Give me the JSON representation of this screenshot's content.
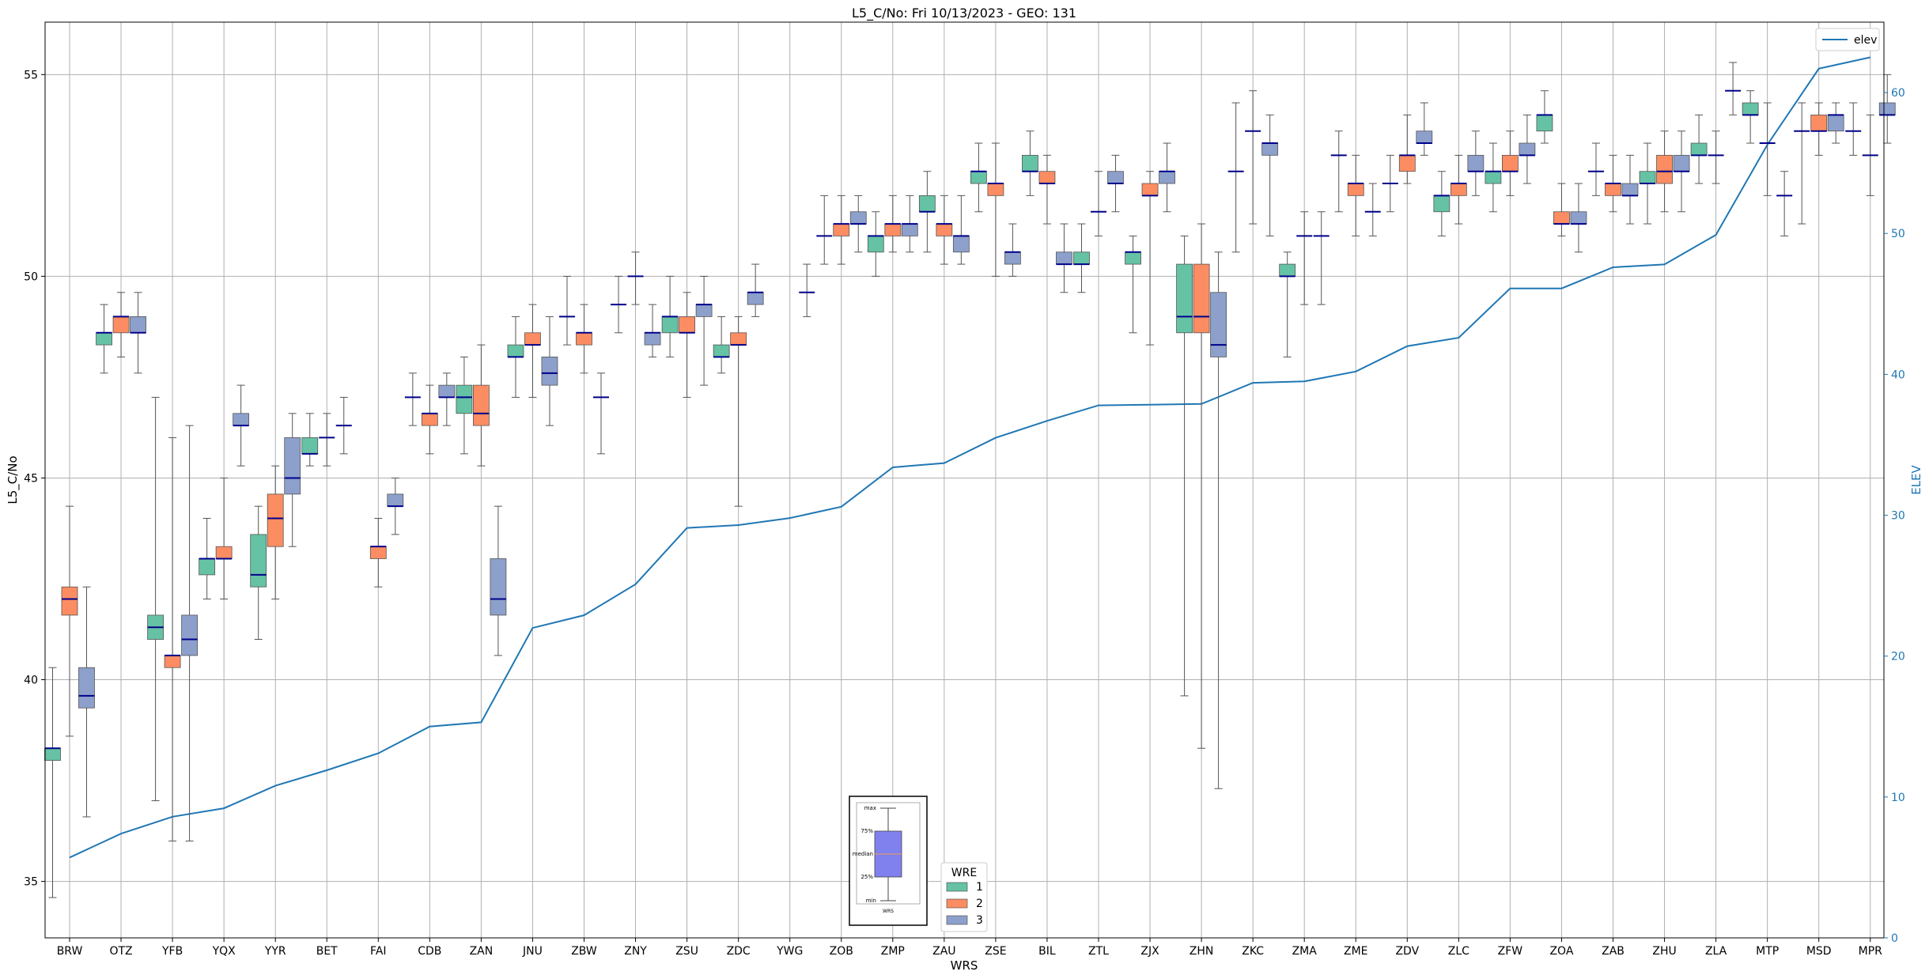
{
  "chart_data": {
    "type": "box",
    "title": "L5_C/No: Fri 10/13/2023 - GEO: 131",
    "xlabel": "WRS",
    "ylabel": "L5_C/No",
    "y2label": "ELEV",
    "ylim": [
      33.6,
      56.3
    ],
    "y2lim": [
      0,
      65
    ],
    "yticks": [
      35,
      40,
      45,
      50,
      55
    ],
    "y2ticks": [
      0,
      10,
      20,
      30,
      40,
      50,
      60
    ],
    "grid": true,
    "colors": {
      "1": "#66c2a5",
      "2": "#fc8d62",
      "3": "#8da0cb",
      "median": "#00008b",
      "elev": "#1f77b4",
      "whisker": "#555555",
      "axis2": "#1f77b4"
    },
    "legend_elev": {
      "label": "elev",
      "position": "top-right"
    },
    "legend_wre": {
      "title": "WRE",
      "entries": [
        "1",
        "2",
        "3"
      ],
      "position": "bottom-center"
    },
    "inset": {
      "labels": [
        "max",
        "75%",
        "median",
        "25%",
        "min"
      ],
      "xlabel": "WRS"
    },
    "categories": [
      "BRW",
      "OTZ",
      "YFB",
      "YQX",
      "YYR",
      "BET",
      "FAI",
      "CDB",
      "ZAN",
      "JNU",
      "ZBW",
      "ZNY",
      "ZSU",
      "ZDC",
      "YWG",
      "ZOB",
      "ZMP",
      "ZAU",
      "ZSE",
      "BIL",
      "ZTL",
      "ZJX",
      "ZHN",
      "ZKC",
      "ZMA",
      "ZME",
      "ZDV",
      "ZLC",
      "ZFW",
      "ZOA",
      "ZAB",
      "ZHU",
      "ZLA",
      "MTP",
      "MSD",
      "MPR"
    ],
    "elev": [
      5.7,
      7.4,
      8.6,
      9.2,
      10.8,
      11.9,
      13.1,
      15.0,
      15.3,
      22.0,
      22.9,
      25.1,
      29.1,
      29.3,
      29.8,
      30.6,
      33.4,
      33.7,
      35.5,
      36.7,
      37.8,
      37.85,
      37.9,
      39.4,
      39.5,
      40.2,
      42.0,
      42.6,
      46.1,
      46.1,
      47.6,
      47.8,
      49.9,
      56.3,
      61.7,
      62.5
    ],
    "boxes": [
      {
        "station": "BRW",
        "wre": 1,
        "min": 34.6,
        "q1": 38.0,
        "med": 38.3,
        "q3": 38.3,
        "max": 40.3
      },
      {
        "station": "BRW",
        "wre": 2,
        "min": 38.6,
        "q1": 41.6,
        "med": 42.0,
        "q3": 42.3,
        "max": 44.3
      },
      {
        "station": "BRW",
        "wre": 3,
        "min": 36.6,
        "q1": 39.3,
        "med": 39.6,
        "q3": 40.3,
        "max": 42.3
      },
      {
        "station": "OTZ",
        "wre": 1,
        "min": 47.6,
        "q1": 48.3,
        "med": 48.6,
        "q3": 48.6,
        "max": 49.3
      },
      {
        "station": "OTZ",
        "wre": 2,
        "min": 48.0,
        "q1": 48.6,
        "med": 49.0,
        "q3": 49.0,
        "max": 49.6
      },
      {
        "station": "OTZ",
        "wre": 3,
        "min": 47.6,
        "q1": 48.6,
        "med": 48.6,
        "q3": 49.0,
        "max": 49.6
      },
      {
        "station": "YFB",
        "wre": 1,
        "min": 37.0,
        "q1": 41.0,
        "med": 41.3,
        "q3": 41.6,
        "max": 47.0
      },
      {
        "station": "YFB",
        "wre": 2,
        "min": 36.0,
        "q1": 40.3,
        "med": 40.6,
        "q3": 40.6,
        "max": 46.0
      },
      {
        "station": "YFB",
        "wre": 3,
        "min": 36.0,
        "q1": 40.6,
        "med": 41.0,
        "q3": 41.6,
        "max": 46.3
      },
      {
        "station": "YQX",
        "wre": 1,
        "min": 42.0,
        "q1": 42.6,
        "med": 43.0,
        "q3": 43.0,
        "max": 44.0
      },
      {
        "station": "YQX",
        "wre": 2,
        "min": 42.0,
        "q1": 43.0,
        "med": 43.0,
        "q3": 43.3,
        "max": 45.0
      },
      {
        "station": "YQX",
        "wre": 3,
        "min": 45.3,
        "q1": 46.3,
        "med": 46.3,
        "q3": 46.6,
        "max": 47.3
      },
      {
        "station": "YYR",
        "wre": 1,
        "min": 41.0,
        "q1": 42.3,
        "med": 42.6,
        "q3": 43.6,
        "max": 44.3
      },
      {
        "station": "YYR",
        "wre": 2,
        "min": 42.0,
        "q1": 43.3,
        "med": 44.0,
        "q3": 44.6,
        "max": 45.3
      },
      {
        "station": "YYR",
        "wre": 3,
        "min": 43.3,
        "q1": 44.6,
        "med": 45.0,
        "q3": 46.0,
        "max": 46.6
      },
      {
        "station": "BET",
        "wre": 1,
        "min": 45.3,
        "q1": 45.6,
        "med": 45.6,
        "q3": 46.0,
        "max": 46.6
      },
      {
        "station": "BET",
        "wre": 2,
        "min": 45.3,
        "q1": 46.0,
        "med": 46.0,
        "q3": 46.0,
        "max": 46.6
      },
      {
        "station": "BET",
        "wre": 3,
        "min": 45.6,
        "q1": 46.3,
        "med": 46.3,
        "q3": 46.3,
        "max": 47.0
      },
      {
        "station": "FAI",
        "wre": 2,
        "min": 42.3,
        "q1": 43.0,
        "med": 43.3,
        "q3": 43.3,
        "max": 44.0
      },
      {
        "station": "FAI",
        "wre": 3,
        "min": 43.6,
        "q1": 44.3,
        "med": 44.3,
        "q3": 44.6,
        "max": 45.0
      },
      {
        "station": "CDB",
        "wre": 1,
        "min": 46.3,
        "q1": 47.0,
        "med": 47.0,
        "q3": 47.0,
        "max": 47.6
      },
      {
        "station": "CDB",
        "wre": 2,
        "min": 45.6,
        "q1": 46.3,
        "med": 46.6,
        "q3": 46.6,
        "max": 47.3
      },
      {
        "station": "CDB",
        "wre": 3,
        "min": 46.3,
        "q1": 47.0,
        "med": 47.0,
        "q3": 47.3,
        "max": 47.6
      },
      {
        "station": "ZAN",
        "wre": 1,
        "min": 45.6,
        "q1": 46.6,
        "med": 47.0,
        "q3": 47.3,
        "max": 48.0
      },
      {
        "station": "ZAN",
        "wre": 2,
        "min": 45.3,
        "q1": 46.3,
        "med": 46.6,
        "q3": 47.3,
        "max": 48.3
      },
      {
        "station": "ZAN",
        "wre": 3,
        "min": 40.6,
        "q1": 41.6,
        "med": 42.0,
        "q3": 43.0,
        "max": 44.3
      },
      {
        "station": "JNU",
        "wre": 1,
        "min": 47.0,
        "q1": 48.0,
        "med": 48.0,
        "q3": 48.3,
        "max": 49.0
      },
      {
        "station": "JNU",
        "wre": 2,
        "min": 47.0,
        "q1": 48.3,
        "med": 48.3,
        "q3": 48.6,
        "max": 49.3
      },
      {
        "station": "JNU",
        "wre": 3,
        "min": 46.3,
        "q1": 47.3,
        "med": 47.6,
        "q3": 48.0,
        "max": 49.0
      },
      {
        "station": "ZBW",
        "wre": 1,
        "min": 48.3,
        "q1": 49.0,
        "med": 49.0,
        "q3": 49.0,
        "max": 50.0
      },
      {
        "station": "ZBW",
        "wre": 2,
        "min": 47.6,
        "q1": 48.3,
        "med": 48.6,
        "q3": 48.6,
        "max": 49.3
      },
      {
        "station": "ZBW",
        "wre": 3,
        "min": 45.6,
        "q1": 47.0,
        "med": 47.0,
        "q3": 47.0,
        "max": 47.6
      },
      {
        "station": "ZNY",
        "wre": 1,
        "min": 48.6,
        "q1": 49.3,
        "med": 49.3,
        "q3": 49.3,
        "max": 50.0
      },
      {
        "station": "ZNY",
        "wre": 2,
        "min": 49.3,
        "q1": 50.0,
        "med": 50.0,
        "q3": 50.0,
        "max": 50.6
      },
      {
        "station": "ZNY",
        "wre": 3,
        "min": 48.0,
        "q1": 48.3,
        "med": 48.6,
        "q3": 48.6,
        "max": 49.3
      },
      {
        "station": "ZSU",
        "wre": 1,
        "min": 48.0,
        "q1": 48.6,
        "med": 49.0,
        "q3": 49.0,
        "max": 50.0
      },
      {
        "station": "ZSU",
        "wre": 2,
        "min": 47.0,
        "q1": 48.6,
        "med": 48.6,
        "q3": 49.0,
        "max": 49.6
      },
      {
        "station": "ZSU",
        "wre": 3,
        "min": 47.3,
        "q1": 49.0,
        "med": 49.3,
        "q3": 49.3,
        "max": 50.0
      },
      {
        "station": "ZDC",
        "wre": 1,
        "min": 47.6,
        "q1": 48.0,
        "med": 48.0,
        "q3": 48.3,
        "max": 49.0
      },
      {
        "station": "ZDC",
        "wre": 2,
        "min": 44.3,
        "q1": 48.3,
        "med": 48.3,
        "q3": 48.6,
        "max": 49.0
      },
      {
        "station": "ZDC",
        "wre": 3,
        "min": 49.0,
        "q1": 49.3,
        "med": 49.6,
        "q3": 49.6,
        "max": 50.3
      },
      {
        "station": "YWG",
        "wre": 3,
        "min": 49.0,
        "q1": 49.6,
        "med": 49.6,
        "q3": 49.6,
        "max": 50.3
      },
      {
        "station": "ZOB",
        "wre": 1,
        "min": 50.3,
        "q1": 51.0,
        "med": 51.0,
        "q3": 51.0,
        "max": 52.0
      },
      {
        "station": "ZOB",
        "wre": 2,
        "min": 50.3,
        "q1": 51.0,
        "med": 51.3,
        "q3": 51.3,
        "max": 52.0
      },
      {
        "station": "ZOB",
        "wre": 3,
        "min": 50.6,
        "q1": 51.3,
        "med": 51.3,
        "q3": 51.6,
        "max": 52.0
      },
      {
        "station": "ZMP",
        "wre": 1,
        "min": 50.0,
        "q1": 50.6,
        "med": 51.0,
        "q3": 51.0,
        "max": 51.6
      },
      {
        "station": "ZMP",
        "wre": 2,
        "min": 50.6,
        "q1": 51.0,
        "med": 51.3,
        "q3": 51.3,
        "max": 52.0
      },
      {
        "station": "ZMP",
        "wre": 3,
        "min": 50.6,
        "q1": 51.0,
        "med": 51.3,
        "q3": 51.3,
        "max": 52.0
      },
      {
        "station": "ZAU",
        "wre": 1,
        "min": 50.6,
        "q1": 51.6,
        "med": 51.6,
        "q3": 52.0,
        "max": 52.6
      },
      {
        "station": "ZAU",
        "wre": 2,
        "min": 50.3,
        "q1": 51.0,
        "med": 51.3,
        "q3": 51.3,
        "max": 52.0
      },
      {
        "station": "ZAU",
        "wre": 3,
        "min": 50.3,
        "q1": 50.6,
        "med": 51.0,
        "q3": 51.0,
        "max": 52.0
      },
      {
        "station": "ZSE",
        "wre": 1,
        "min": 51.6,
        "q1": 52.3,
        "med": 52.6,
        "q3": 52.6,
        "max": 53.3
      },
      {
        "station": "ZSE",
        "wre": 2,
        "min": 50.0,
        "q1": 52.0,
        "med": 52.3,
        "q3": 52.3,
        "max": 53.3
      },
      {
        "station": "ZSE",
        "wre": 3,
        "min": 50.0,
        "q1": 50.3,
        "med": 50.6,
        "q3": 50.6,
        "max": 51.3
      },
      {
        "station": "BIL",
        "wre": 1,
        "min": 52.0,
        "q1": 52.6,
        "med": 52.6,
        "q3": 53.0,
        "max": 53.6
      },
      {
        "station": "BIL",
        "wre": 2,
        "min": 51.3,
        "q1": 52.3,
        "med": 52.3,
        "q3": 52.6,
        "max": 53.0
      },
      {
        "station": "BIL",
        "wre": 3,
        "min": 49.6,
        "q1": 50.3,
        "med": 50.3,
        "q3": 50.6,
        "max": 51.3
      },
      {
        "station": "ZTL",
        "wre": 1,
        "min": 49.6,
        "q1": 50.3,
        "med": 50.3,
        "q3": 50.6,
        "max": 51.3
      },
      {
        "station": "ZTL",
        "wre": 2,
        "min": 51.0,
        "q1": 51.6,
        "med": 51.6,
        "q3": 51.6,
        "max": 52.6
      },
      {
        "station": "ZTL",
        "wre": 3,
        "min": 51.6,
        "q1": 52.3,
        "med": 52.3,
        "q3": 52.6,
        "max": 53.0
      },
      {
        "station": "ZJX",
        "wre": 1,
        "min": 48.6,
        "q1": 50.3,
        "med": 50.6,
        "q3": 50.6,
        "max": 51.0
      },
      {
        "station": "ZJX",
        "wre": 2,
        "min": 48.3,
        "q1": 52.0,
        "med": 52.0,
        "q3": 52.3,
        "max": 52.6
      },
      {
        "station": "ZJX",
        "wre": 3,
        "min": 51.6,
        "q1": 52.3,
        "med": 52.6,
        "q3": 52.6,
        "max": 53.3
      },
      {
        "station": "ZHN",
        "wre": 1,
        "min": 39.6,
        "q1": 48.6,
        "med": 49.0,
        "q3": 50.3,
        "max": 51.0
      },
      {
        "station": "ZHN",
        "wre": 2,
        "min": 38.3,
        "q1": 48.6,
        "med": 49.0,
        "q3": 50.3,
        "max": 51.3
      },
      {
        "station": "ZHN",
        "wre": 3,
        "min": 37.3,
        "q1": 48.0,
        "med": 48.3,
        "q3": 49.6,
        "max": 50.6
      },
      {
        "station": "ZKC",
        "wre": 1,
        "min": 50.6,
        "q1": 52.6,
        "med": 52.6,
        "q3": 52.6,
        "max": 54.3
      },
      {
        "station": "ZKC",
        "wre": 2,
        "min": 51.3,
        "q1": 53.6,
        "med": 53.6,
        "q3": 53.6,
        "max": 54.6
      },
      {
        "station": "ZKC",
        "wre": 3,
        "min": 51.0,
        "q1": 53.0,
        "med": 53.3,
        "q3": 53.3,
        "max": 54.0
      },
      {
        "station": "ZMA",
        "wre": 1,
        "min": 48.0,
        "q1": 50.0,
        "med": 50.0,
        "q3": 50.3,
        "max": 50.6
      },
      {
        "station": "ZMA",
        "wre": 2,
        "min": 49.3,
        "q1": 51.0,
        "med": 51.0,
        "q3": 51.0,
        "max": 51.6
      },
      {
        "station": "ZMA",
        "wre": 3,
        "min": 49.3,
        "q1": 51.0,
        "med": 51.0,
        "q3": 51.0,
        "max": 51.6
      },
      {
        "station": "ZME",
        "wre": 1,
        "min": 51.6,
        "q1": 53.0,
        "med": 53.0,
        "q3": 53.0,
        "max": 53.6
      },
      {
        "station": "ZME",
        "wre": 2,
        "min": 51.0,
        "q1": 52.0,
        "med": 52.3,
        "q3": 52.3,
        "max": 53.0
      },
      {
        "station": "ZME",
        "wre": 3,
        "min": 51.0,
        "q1": 51.6,
        "med": 51.6,
        "q3": 51.6,
        "max": 52.3
      },
      {
        "station": "ZDV",
        "wre": 1,
        "min": 51.6,
        "q1": 52.3,
        "med": 52.3,
        "q3": 52.3,
        "max": 53.0
      },
      {
        "station": "ZDV",
        "wre": 2,
        "min": 52.3,
        "q1": 52.6,
        "med": 53.0,
        "q3": 53.0,
        "max": 54.0
      },
      {
        "station": "ZDV",
        "wre": 3,
        "min": 53.0,
        "q1": 53.3,
        "med": 53.3,
        "q3": 53.6,
        "max": 54.3
      },
      {
        "station": "ZLC",
        "wre": 1,
        "min": 51.0,
        "q1": 51.6,
        "med": 52.0,
        "q3": 52.0,
        "max": 52.6
      },
      {
        "station": "ZLC",
        "wre": 2,
        "min": 51.3,
        "q1": 52.0,
        "med": 52.3,
        "q3": 52.3,
        "max": 53.0
      },
      {
        "station": "ZLC",
        "wre": 3,
        "min": 52.0,
        "q1": 52.6,
        "med": 52.6,
        "q3": 53.0,
        "max": 53.6
      },
      {
        "station": "ZFW",
        "wre": 1,
        "min": 51.6,
        "q1": 52.3,
        "med": 52.6,
        "q3": 52.6,
        "max": 53.3
      },
      {
        "station": "ZFW",
        "wre": 2,
        "min": 52.0,
        "q1": 52.6,
        "med": 52.6,
        "q3": 53.0,
        "max": 53.6
      },
      {
        "station": "ZFW",
        "wre": 3,
        "min": 52.3,
        "q1": 53.0,
        "med": 53.0,
        "q3": 53.3,
        "max": 54.0
      },
      {
        "station": "ZOA",
        "wre": 1,
        "min": 53.3,
        "q1": 53.6,
        "med": 54.0,
        "q3": 54.0,
        "max": 54.6
      },
      {
        "station": "ZOA",
        "wre": 2,
        "min": 51.0,
        "q1": 51.3,
        "med": 51.3,
        "q3": 51.6,
        "max": 52.3
      },
      {
        "station": "ZOA",
        "wre": 3,
        "min": 50.6,
        "q1": 51.3,
        "med": 51.3,
        "q3": 51.6,
        "max": 52.3
      },
      {
        "station": "ZAB",
        "wre": 1,
        "min": 52.0,
        "q1": 52.6,
        "med": 52.6,
        "q3": 52.6,
        "max": 53.3
      },
      {
        "station": "ZAB",
        "wre": 2,
        "min": 51.6,
        "q1": 52.0,
        "med": 52.3,
        "q3": 52.3,
        "max": 53.0
      },
      {
        "station": "ZAB",
        "wre": 3,
        "min": 51.3,
        "q1": 52.0,
        "med": 52.0,
        "q3": 52.3,
        "max": 53.0
      },
      {
        "station": "ZHU",
        "wre": 1,
        "min": 51.3,
        "q1": 52.3,
        "med": 52.3,
        "q3": 52.6,
        "max": 53.3
      },
      {
        "station": "ZHU",
        "wre": 2,
        "min": 51.6,
        "q1": 52.3,
        "med": 52.6,
        "q3": 53.0,
        "max": 53.6
      },
      {
        "station": "ZHU",
        "wre": 3,
        "min": 51.6,
        "q1": 52.6,
        "med": 52.6,
        "q3": 53.0,
        "max": 53.6
      },
      {
        "station": "ZLA",
        "wre": 1,
        "min": 52.3,
        "q1": 53.0,
        "med": 53.0,
        "q3": 53.3,
        "max": 54.0
      },
      {
        "station": "ZLA",
        "wre": 2,
        "min": 52.3,
        "q1": 53.0,
        "med": 53.0,
        "q3": 53.0,
        "max": 53.6
      },
      {
        "station": "ZLA",
        "wre": 3,
        "min": 54.0,
        "q1": 54.6,
        "med": 54.6,
        "q3": 54.6,
        "max": 55.3
      },
      {
        "station": "MTP",
        "wre": 1,
        "min": 53.3,
        "q1": 54.0,
        "med": 54.0,
        "q3": 54.3,
        "max": 54.6
      },
      {
        "station": "MTP",
        "wre": 2,
        "min": 52.0,
        "q1": 53.3,
        "med": 53.3,
        "q3": 53.3,
        "max": 54.3
      },
      {
        "station": "MTP",
        "wre": 3,
        "min": 51.0,
        "q1": 52.0,
        "med": 52.0,
        "q3": 52.0,
        "max": 52.6
      },
      {
        "station": "MSD",
        "wre": 1,
        "min": 51.3,
        "q1": 53.6,
        "med": 53.6,
        "q3": 53.6,
        "max": 54.3
      },
      {
        "station": "MSD",
        "wre": 2,
        "min": 53.0,
        "q1": 53.6,
        "med": 53.6,
        "q3": 54.0,
        "max": 54.3
      },
      {
        "station": "MSD",
        "wre": 3,
        "min": 53.3,
        "q1": 53.6,
        "med": 54.0,
        "q3": 54.0,
        "max": 54.3
      },
      {
        "station": "MPR",
        "wre": 1,
        "min": 53.0,
        "q1": 53.6,
        "med": 53.6,
        "q3": 53.6,
        "max": 54.3
      },
      {
        "station": "MPR",
        "wre": 2,
        "min": 52.0,
        "q1": 53.0,
        "med": 53.0,
        "q3": 53.0,
        "max": 54.0
      },
      {
        "station": "MPR",
        "wre": 3,
        "min": 53.3,
        "q1": 54.0,
        "med": 54.0,
        "q3": 54.3,
        "max": 55.0
      }
    ]
  }
}
